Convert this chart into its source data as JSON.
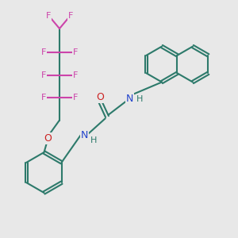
{
  "bg_color": "#e8e8e8",
  "bond_color": "#2d7a6b",
  "fluorine_color": "#cc44aa",
  "nitrogen_color": "#2244cc",
  "oxygen_color": "#cc2222",
  "line_width": 1.5,
  "fig_size": [
    3.0,
    3.0
  ],
  "dpi": 100,
  "xlim": [
    0,
    10
  ],
  "ylim": [
    0,
    10
  ]
}
